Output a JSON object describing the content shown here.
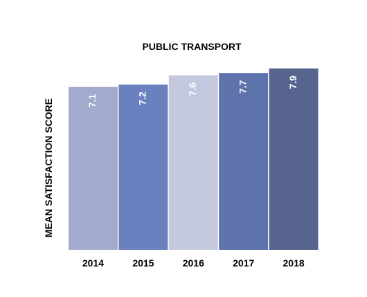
{
  "chart_data": {
    "type": "bar",
    "title": "PUBLIC TRANSPORT",
    "xlabel": "",
    "ylabel": "MEAN SATISFACTION SCORE",
    "categories": [
      "2014",
      "2015",
      "2016",
      "2017",
      "2018"
    ],
    "values": [
      7.1,
      7.2,
      7.6,
      7.7,
      7.9
    ],
    "data_labels": [
      "7.1",
      "7.2",
      "7.6",
      "7.7",
      "7.9"
    ],
    "colors": [
      "#a2aacd",
      "#6a80bf",
      "#c4c8de",
      "#5e73ac",
      "#56648e"
    ],
    "label_color": "#ffffff",
    "text_color": "#000000",
    "ylim": [
      0,
      8.1
    ],
    "grid": false,
    "legend": "none"
  }
}
